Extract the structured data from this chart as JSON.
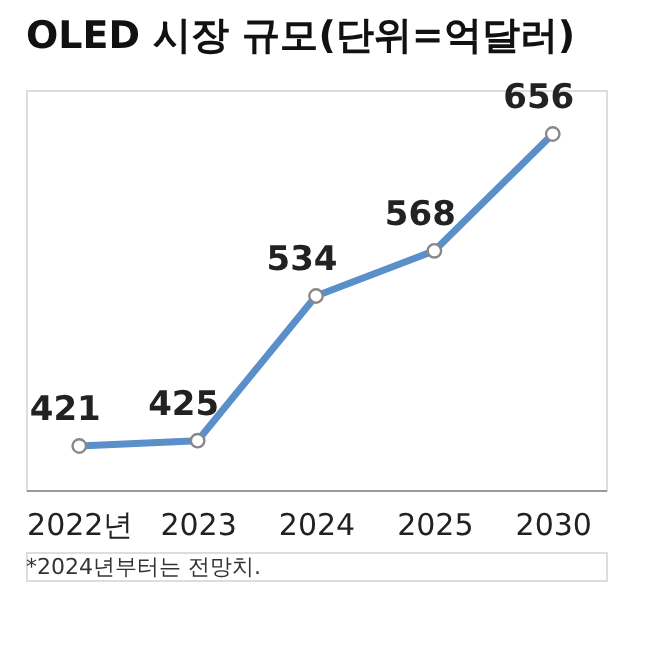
{
  "chart_data": {
    "type": "line",
    "title": "OLED 시장 규모(단위=억달러)",
    "categories": [
      "2022년",
      "2023",
      "2024",
      "2025",
      "2030"
    ],
    "values": [
      421,
      425,
      534,
      568,
      656
    ],
    "color": "#5b8fc9",
    "marker": "circle",
    "data_labels": true,
    "grid": false,
    "tick_labels": "x",
    "annotations": [
      "*2024년부터는 전망치."
    ]
  }
}
